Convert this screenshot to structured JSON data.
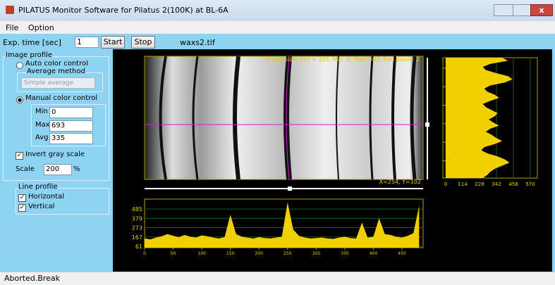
{
  "window": {
    "title": "PILATUS Monitor Software for Pilatus 2(100K) at BL-6A"
  },
  "menu": [
    "File",
    "Option"
  ],
  "toolbar": {
    "exp_label": "Exp. time [sec]",
    "exp_value": "1",
    "start": "Start",
    "stop": "Stop",
    "file": "waxs2.tif"
  },
  "image_profile": {
    "title": "Image profile",
    "auto": "Auto color control",
    "average_method": "Average method",
    "method_value": "Simple average",
    "manual": "Manual color control",
    "min_label": "Min",
    "min_value": "0",
    "max_label": "Max",
    "max_value": "693",
    "avg_label": "Avg",
    "avg_value": "335",
    "invert": "Invert gray scale",
    "scale_label": "Scale",
    "scale_value": "200",
    "scale_unit": "%"
  },
  "line_profile": {
    "title": "Line profile",
    "horizontal": "Horizontal",
    "vertical": "Vertical"
  },
  "image_info": "Image size: 487 × 195, Min: 0, Max: 693, Bad pixels: 2",
  "cursor": "X=254, Y=102",
  "horizontal_profile": {
    "xlim": [
      0,
      487
    ],
    "ylim": [
      45,
      597
    ],
    "xticks": [
      0,
      50,
      100,
      150,
      200,
      250,
      300,
      350,
      400,
      450
    ],
    "yticks": [
      485,
      379,
      273,
      167,
      61
    ],
    "x": [
      0,
      10,
      20,
      30,
      40,
      50,
      60,
      70,
      80,
      90,
      100,
      110,
      120,
      130,
      140,
      150,
      160,
      170,
      180,
      190,
      200,
      210,
      220,
      230,
      240,
      250,
      260,
      270,
      280,
      290,
      300,
      310,
      320,
      330,
      340,
      350,
      360,
      370,
      380,
      390,
      400,
      410,
      420,
      430,
      440,
      450,
      460,
      470,
      480
    ],
    "values": [
      150,
      140,
      160,
      175,
      200,
      180,
      165,
      190,
      170,
      160,
      185,
      175,
      160,
      150,
      165,
      420,
      200,
      170,
      160,
      150,
      165,
      155,
      150,
      160,
      170,
      560,
      250,
      180,
      160,
      150,
      155,
      160,
      150,
      145,
      160,
      170,
      155,
      150,
      330,
      160,
      170,
      380,
      200,
      190,
      170,
      160,
      180,
      210,
      520
    ]
  },
  "vertical_profile": {
    "xlim": [
      0,
      570
    ],
    "ylim": [
      0,
      195
    ],
    "xticks": [
      0,
      114,
      228,
      342,
      456,
      570
    ],
    "yticks": [
      17,
      47,
      77,
      107,
      137,
      167
    ],
    "rows": [
      0,
      5,
      10,
      15,
      20,
      25,
      30,
      35,
      40,
      45,
      50,
      55,
      60,
      65,
      70,
      75,
      80,
      85,
      90,
      95,
      100,
      105,
      110,
      115,
      120,
      125,
      130,
      135,
      140,
      145,
      150,
      155,
      160,
      165,
      170,
      175,
      180,
      185,
      190,
      195
    ],
    "values": [
      380,
      420,
      300,
      250,
      270,
      340,
      420,
      450,
      400,
      300,
      260,
      280,
      330,
      360,
      300,
      250,
      270,
      310,
      350,
      330,
      290,
      320,
      360,
      300,
      270,
      310,
      340,
      380,
      330,
      260,
      240,
      280,
      350,
      400,
      430,
      380,
      330,
      300,
      280,
      250
    ]
  },
  "status": "Aborted.Break"
}
